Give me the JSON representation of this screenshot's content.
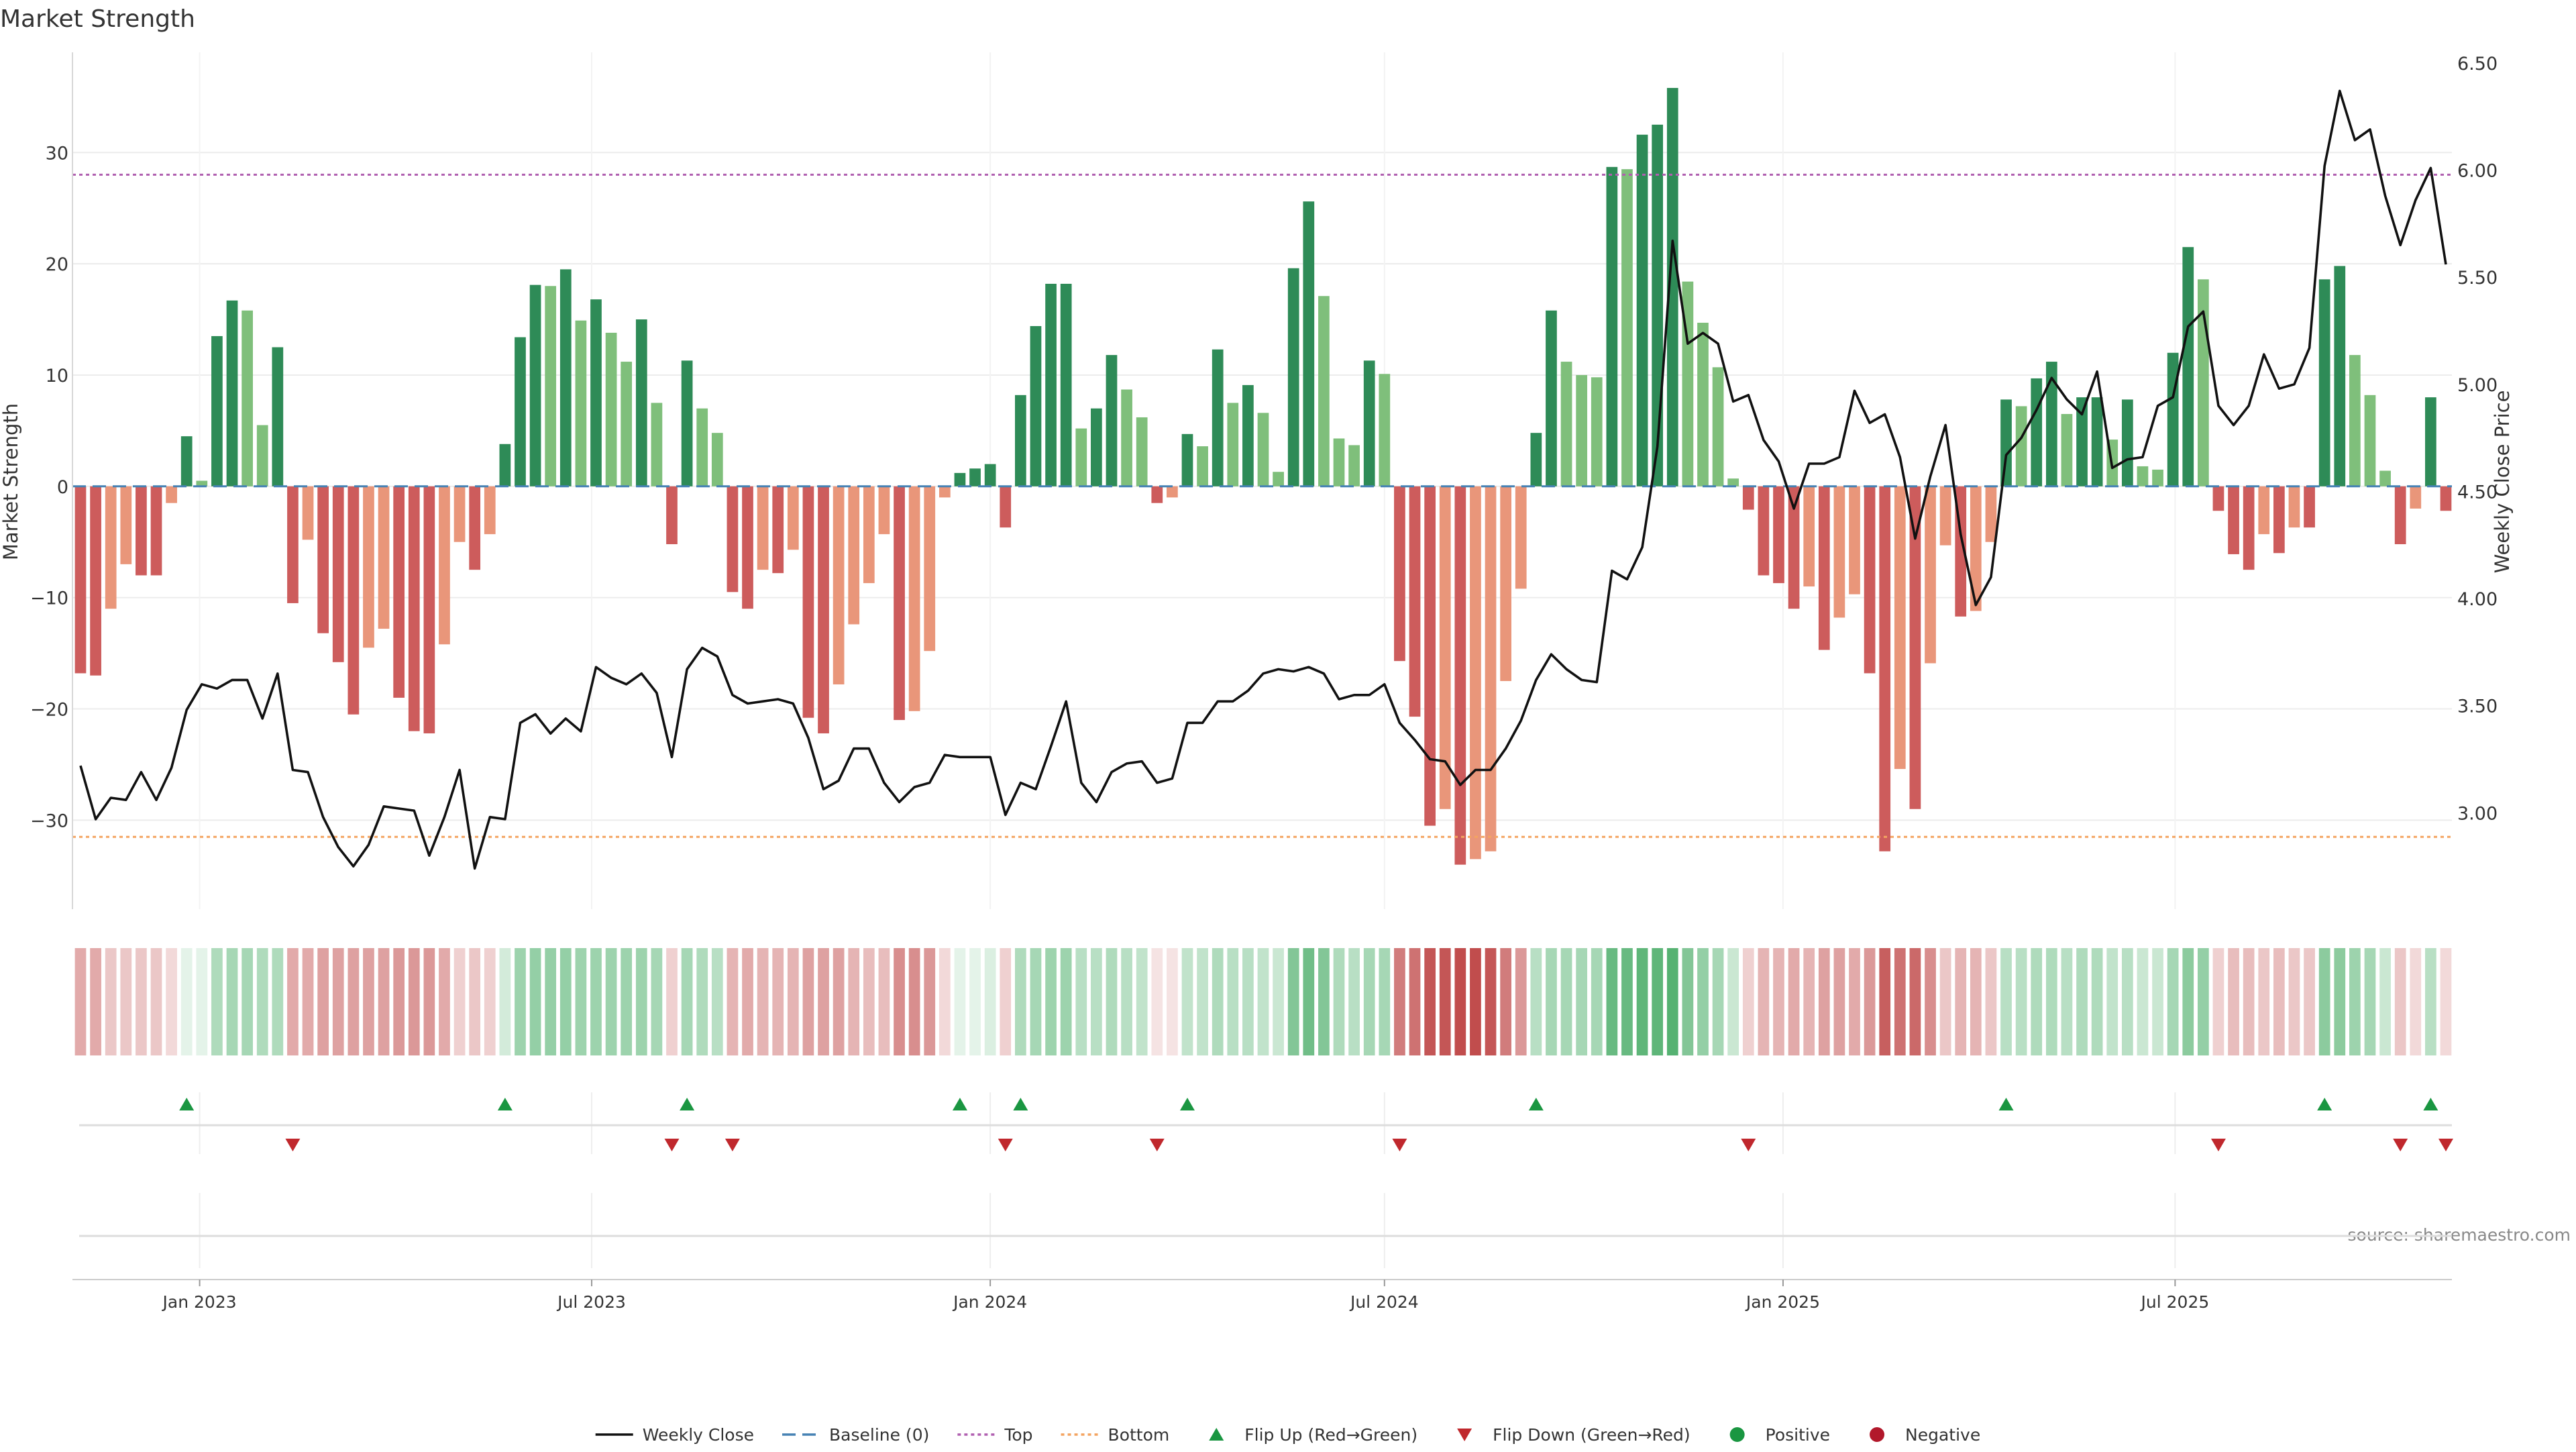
{
  "chart_data": {
    "type": "bar",
    "title": "Market Strength",
    "ylabel_left": "Market Strength",
    "ylabel_right": "Weekly Close Price",
    "source": "source: sharemaestro.com",
    "ylim_left": [
      -38,
      39
    ],
    "ylim_right": [
      2.55,
      6.55
    ],
    "yticks_left": [
      30,
      20,
      10,
      0,
      -10,
      -20,
      -30
    ],
    "yticks_left_labels": [
      "30",
      "20",
      "10",
      "0",
      "−10",
      "−20",
      "−30"
    ],
    "yticks_right": [
      6.5,
      6.0,
      5.5,
      5.0,
      4.5,
      4.0,
      3.5,
      3.0
    ],
    "yticks_right_labels": [
      "6.50",
      "6.00",
      "5.50",
      "5.00",
      "4.50",
      "4.00",
      "3.50",
      "3.00"
    ],
    "x_start": "2022-11-07",
    "x_step_days": 7,
    "xtick_dates": [
      "2023-01-01",
      "2023-07-01",
      "2024-01-01",
      "2024-07-01",
      "2025-01-01",
      "2025-07-01"
    ],
    "xtick_labels": [
      "Jan 2023",
      "Jul 2023",
      "Jan 2024",
      "Jul 2024",
      "Jan 2025",
      "Jul 2025"
    ],
    "top_line": 28,
    "bottom_line": -31.5,
    "strength": [
      -16.8,
      -17,
      -11,
      -7,
      -8,
      -8,
      -1.5,
      4.5,
      0.5,
      13.5,
      16.7,
      15.8,
      5.5,
      12.5,
      -10.5,
      -4.8,
      -13.2,
      -15.8,
      -20.5,
      -14.5,
      -12.8,
      -19,
      -22,
      -22.2,
      -14.2,
      -5,
      -7.5,
      -4.3,
      3.8,
      13.4,
      18.1,
      18,
      19.5,
      14.9,
      16.8,
      13.8,
      11.2,
      15,
      7.5,
      -5.2,
      11.3,
      7,
      4.8,
      -9.5,
      -11,
      -7.5,
      -7.8,
      -5.7,
      -20.8,
      -22.2,
      -17.8,
      -12.4,
      -8.7,
      -4.3,
      -21,
      -20.2,
      -14.8,
      -1,
      1.2,
      1.6,
      2,
      -3.7,
      8.2,
      14.4,
      18.2,
      18.2,
      5.2,
      7,
      11.8,
      8.7,
      6.2,
      -1.5,
      -1,
      4.7,
      3.6,
      12.3,
      7.5,
      9.1,
      6.6,
      1.3,
      19.6,
      25.6,
      17.1,
      4.3,
      3.7,
      11.3,
      10.1,
      -15.7,
      -20.7,
      -30.5,
      -29,
      -34,
      -33.5,
      -32.8,
      -17.5,
      -9.2,
      4.8,
      15.8,
      11.2,
      10,
      9.8,
      28.7,
      28.5,
      31.6,
      32.5,
      35.8,
      18.4,
      14.7,
      10.7,
      0.7,
      -2.1,
      -8,
      -8.7,
      -11,
      -9,
      -14.7,
      -11.8,
      -9.7,
      -16.8,
      -32.8,
      -25.4,
      -29,
      -15.9,
      -5.3,
      -11.7,
      -11.2,
      -5,
      7.8,
      7.2,
      9.7,
      11.2,
      6.5,
      8,
      8,
      4.2,
      7.8,
      1.8,
      1.5,
      12,
      21.5,
      18.6,
      -2.2,
      -6.1,
      -7.5,
      -4.3,
      -6,
      -3.7,
      -3.7,
      18.6,
      19.8,
      11.8,
      8.2,
      1.4,
      -5.2,
      -2,
      8,
      -2.2
    ],
    "close": [
      3.22,
      2.97,
      3.07,
      3.06,
      3.19,
      3.06,
      3.21,
      3.48,
      3.6,
      3.58,
      3.62,
      3.62,
      3.44,
      3.65,
      3.2,
      3.19,
      2.98,
      2.84,
      2.75,
      2.85,
      3.03,
      3.02,
      3.01,
      2.8,
      2.98,
      3.2,
      2.74,
      2.98,
      2.97,
      3.42,
      3.46,
      3.37,
      3.44,
      3.38,
      3.68,
      3.63,
      3.6,
      3.65,
      3.56,
      3.26,
      3.67,
      3.77,
      3.73,
      3.55,
      3.51,
      3.52,
      3.53,
      3.51,
      3.35,
      3.11,
      3.15,
      3.3,
      3.3,
      3.14,
      3.05,
      3.12,
      3.14,
      3.27,
      3.26,
      3.26,
      3.26,
      2.99,
      3.14,
      3.11,
      3.31,
      3.52,
      3.14,
      3.05,
      3.19,
      3.23,
      3.24,
      3.14,
      3.16,
      3.42,
      3.42,
      3.52,
      3.52,
      3.57,
      3.65,
      3.67,
      3.66,
      3.68,
      3.65,
      3.53,
      3.55,
      3.55,
      3.6,
      3.42,
      3.34,
      3.25,
      3.24,
      3.13,
      3.2,
      3.2,
      3.3,
      3.43,
      3.62,
      3.74,
      3.67,
      3.62,
      3.61,
      4.13,
      4.09,
      4.24,
      4.71,
      5.67,
      5.19,
      5.24,
      5.19,
      4.92,
      4.95,
      4.74,
      4.64,
      4.42,
      4.63,
      4.63,
      4.66,
      4.97,
      4.82,
      4.86,
      4.66,
      4.28,
      4.57,
      4.81,
      4.3,
      3.97,
      4.1,
      4.67,
      4.75,
      4.88,
      5.03,
      4.93,
      4.86,
      5.06,
      4.61,
      4.65,
      4.66,
      4.9,
      4.94,
      5.27,
      5.34,
      4.9,
      4.81,
      4.9,
      5.14,
      4.98,
      5,
      5.17,
      6.02,
      6.37,
      6.14,
      6.19,
      5.88,
      5.65,
      5.86,
      6.01,
      5.56
    ],
    "heat_values": [
      -0.45,
      -0.45,
      -0.3,
      -0.3,
      -0.3,
      -0.3,
      -0.2,
      0.15,
      0.15,
      0.45,
      0.5,
      0.5,
      0.45,
      0.45,
      -0.45,
      -0.45,
      -0.5,
      -0.5,
      -0.5,
      -0.5,
      -0.5,
      -0.55,
      -0.55,
      -0.55,
      -0.45,
      -0.25,
      -0.3,
      -0.25,
      0.25,
      0.55,
      0.6,
      0.6,
      0.6,
      0.55,
      0.55,
      0.55,
      0.55,
      0.55,
      0.5,
      -0.25,
      0.5,
      0.45,
      0.4,
      -0.4,
      -0.45,
      -0.4,
      -0.4,
      -0.4,
      -0.5,
      -0.5,
      -0.5,
      -0.4,
      -0.35,
      -0.35,
      -0.6,
      -0.6,
      -0.55,
      -0.2,
      0.15,
      0.15,
      0.2,
      -0.25,
      0.45,
      0.5,
      0.55,
      0.55,
      0.4,
      0.4,
      0.45,
      0.4,
      0.35,
      -0.15,
      -0.15,
      0.35,
      0.35,
      0.45,
      0.4,
      0.4,
      0.35,
      0.3,
      0.7,
      0.8,
      0.7,
      0.45,
      0.4,
      0.5,
      0.5,
      -0.7,
      -0.75,
      -0.9,
      -0.9,
      -0.95,
      -0.95,
      -0.9,
      -0.7,
      -0.55,
      0.4,
      0.5,
      0.5,
      0.5,
      0.5,
      0.85,
      0.85,
      0.9,
      0.9,
      0.95,
      0.7,
      0.6,
      0.5,
      0.3,
      -0.25,
      -0.4,
      -0.4,
      -0.45,
      -0.4,
      -0.5,
      -0.5,
      -0.45,
      -0.55,
      -0.85,
      -0.75,
      -0.8,
      -0.6,
      -0.3,
      -0.4,
      -0.4,
      -0.3,
      0.4,
      0.4,
      0.45,
      0.45,
      0.4,
      0.45,
      0.45,
      0.35,
      0.4,
      0.3,
      0.3,
      0.5,
      0.65,
      0.6,
      -0.25,
      -0.35,
      -0.35,
      -0.3,
      -0.35,
      -0.3,
      -0.3,
      0.65,
      0.65,
      0.55,
      0.5,
      0.3,
      -0.3,
      -0.2,
      0.4,
      -0.2
    ],
    "flip_up_weeks": [
      7,
      28,
      40,
      58,
      62,
      73,
      96,
      127,
      148,
      155
    ],
    "flip_down_weeks": [
      14,
      39,
      43,
      61,
      71,
      87,
      110,
      141,
      153,
      156
    ],
    "grid": true,
    "legend_position": "bottom-center",
    "legend": [
      {
        "key": "close",
        "label": "Weekly Close"
      },
      {
        "key": "baseline",
        "label": "Baseline (0)"
      },
      {
        "key": "top",
        "label": "Top"
      },
      {
        "key": "bottom",
        "label": "Bottom"
      },
      {
        "key": "flip_up",
        "label": "Flip Up (Red→Green)"
      },
      {
        "key": "flip_down",
        "label": "Flip Down (Green→Red)"
      },
      {
        "key": "positive",
        "label": "Positive"
      },
      {
        "key": "negative",
        "label": "Negative"
      }
    ],
    "colors": {
      "bar_pos_dark": "#2e8b57",
      "bar_pos_light": "#7fbf7b",
      "bar_neg_dark": "#cd5c5c",
      "bar_neg_light": "#e9967a",
      "close_line": "#111111",
      "baseline": "#4682b4",
      "top_line": "#b05fb0",
      "bottom_line": "#f4a460",
      "flip_up": "#1a9641",
      "flip_down": "#c0282d",
      "positive": "#1a9641",
      "negative": "#b2182b",
      "grid": "#ececec"
    }
  }
}
